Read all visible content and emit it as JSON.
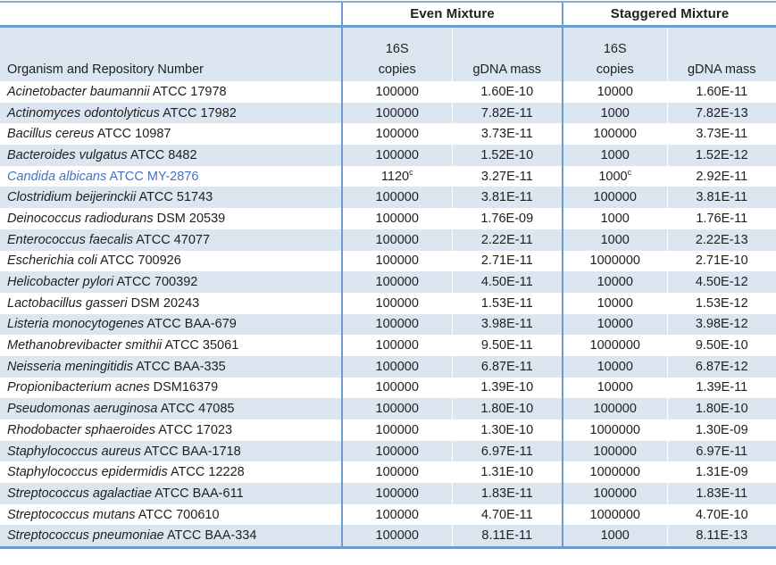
{
  "table": {
    "group_headers": [
      "Even Mixture",
      "Staggered Mixture"
    ],
    "column_headers": {
      "organism": "Organism and Repository Number",
      "copies_top": "16S",
      "copies_bottom": "copies",
      "gdna_mass": "gDNA mass"
    },
    "rows": [
      {
        "organism": "Acinetobacter baumannii",
        "repository": "ATCC 17978",
        "even_copies": "100000",
        "even_gdna": "1.60E-10",
        "stag_copies": "10000",
        "stag_gdna": "1.60E-11"
      },
      {
        "organism": "Actinomyces odontolyticus",
        "repository": "ATCC 17982",
        "even_copies": "100000",
        "even_gdna": "7.82E-11",
        "stag_copies": "1000",
        "stag_gdna": "7.82E-13"
      },
      {
        "organism": "Bacillus cereus",
        "repository": "ATCC 10987",
        "even_copies": "100000",
        "even_gdna": "3.73E-11",
        "stag_copies": "100000",
        "stag_gdna": "3.73E-11"
      },
      {
        "organism": "Bacteroides vulgatus",
        "repository": "ATCC 8482",
        "even_copies": "100000",
        "even_gdna": "1.52E-10",
        "stag_copies": "1000",
        "stag_gdna": "1.52E-12"
      },
      {
        "organism": "Candida albicans",
        "repository": "ATCC MY-2876",
        "even_copies": "1120",
        "even_copies_sup": "c",
        "even_gdna": "3.27E-11",
        "stag_copies": "1000",
        "stag_copies_sup": "c",
        "stag_gdna": "2.92E-11",
        "highlight": true
      },
      {
        "organism": "Clostridium beijerinckii",
        "repository": "ATCC 51743",
        "even_copies": "100000",
        "even_gdna": "3.81E-11",
        "stag_copies": "100000",
        "stag_gdna": "3.81E-11"
      },
      {
        "organism": "Deinococcus radiodurans",
        "repository": "DSM 20539",
        "even_copies": "100000",
        "even_gdna": "1.76E-09",
        "stag_copies": "1000",
        "stag_gdna": "1.76E-11"
      },
      {
        "organism": "Enterococcus faecalis",
        "repository": "ATCC 47077",
        "even_copies": "100000",
        "even_gdna": "2.22E-11",
        "stag_copies": "1000",
        "stag_gdna": "2.22E-13"
      },
      {
        "organism": "Escherichia coli",
        "repository": "ATCC 700926",
        "even_copies": "100000",
        "even_gdna": "2.71E-11",
        "stag_copies": "1000000",
        "stag_gdna": "2.71E-10"
      },
      {
        "organism": "Helicobacter pylori",
        "repository": "ATCC 700392",
        "even_copies": "100000",
        "even_gdna": "4.50E-11",
        "stag_copies": "10000",
        "stag_gdna": "4.50E-12"
      },
      {
        "organism": "Lactobacillus gasseri",
        "repository": "DSM 20243",
        "even_copies": "100000",
        "even_gdna": "1.53E-11",
        "stag_copies": "10000",
        "stag_gdna": "1.53E-12"
      },
      {
        "organism": "Listeria monocytogenes",
        "repository": "ATCC BAA-679",
        "even_copies": "100000",
        "even_gdna": "3.98E-11",
        "stag_copies": "10000",
        "stag_gdna": "3.98E-12"
      },
      {
        "organism": "Methanobrevibacter smithii",
        "repository": "ATCC 35061",
        "even_copies": "100000",
        "even_gdna": "9.50E-11",
        "stag_copies": "1000000",
        "stag_gdna": "9.50E-10"
      },
      {
        "organism": "Neisseria meningitidis",
        "repository": "ATCC BAA-335",
        "even_copies": "100000",
        "even_gdna": "6.87E-11",
        "stag_copies": "10000",
        "stag_gdna": "6.87E-12"
      },
      {
        "organism": "Propionibacterium acnes",
        "repository": "DSM16379",
        "even_copies": "100000",
        "even_gdna": "1.39E-10",
        "stag_copies": "10000",
        "stag_gdna": "1.39E-11"
      },
      {
        "organism": "Pseudomonas aeruginosa",
        "repository": "ATCC 47085",
        "even_copies": "100000",
        "even_gdna": "1.80E-10",
        "stag_copies": "100000",
        "stag_gdna": "1.80E-10"
      },
      {
        "organism": "Rhodobacter sphaeroides",
        "repository": "ATCC 17023",
        "even_copies": "100000",
        "even_gdna": "1.30E-10",
        "stag_copies": "1000000",
        "stag_gdna": "1.30E-09"
      },
      {
        "organism": "Staphylococcus aureus",
        "repository": "ATCC BAA-1718",
        "even_copies": "100000",
        "even_gdna": "6.97E-11",
        "stag_copies": "100000",
        "stag_gdna": "6.97E-11"
      },
      {
        "organism": "Staphylococcus epidermidis",
        "repository": "ATCC 12228",
        "even_copies": "100000",
        "even_gdna": "1.31E-10",
        "stag_copies": "1000000",
        "stag_gdna": "1.31E-09"
      },
      {
        "organism": "Streptococcus agalactiae",
        "repository": "ATCC BAA-611",
        "even_copies": "100000",
        "even_gdna": "1.83E-11",
        "stag_copies": "100000",
        "stag_gdna": "1.83E-11"
      },
      {
        "organism": "Streptococcus mutans",
        "repository": "ATCC 700610",
        "even_copies": "100000",
        "even_gdna": "4.70E-11",
        "stag_copies": "1000000",
        "stag_gdna": "4.70E-10"
      },
      {
        "organism": "Streptococcus pneumoniae",
        "repository": "ATCC BAA-334",
        "even_copies": "100000",
        "even_gdna": "8.11E-11",
        "stag_copies": "1000",
        "stag_gdna": "8.11E-13"
      }
    ]
  },
  "colors": {
    "row_shade": "#DCE6F1",
    "border_blue": "#6E9CD1",
    "border_top_blue": "#84ADD6",
    "highlight_text": "#4472C4"
  }
}
